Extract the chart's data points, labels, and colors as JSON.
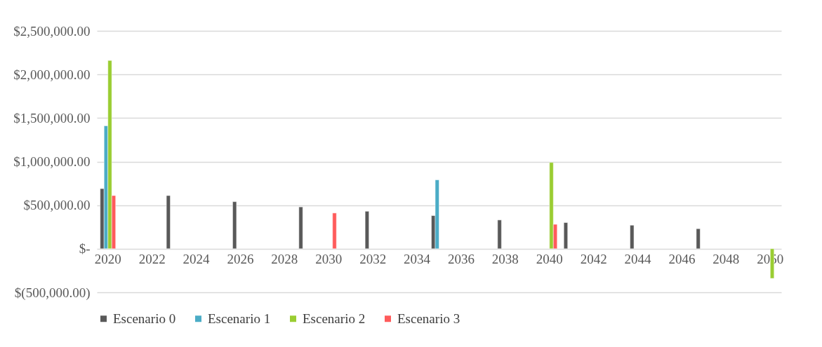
{
  "chart_data": {
    "type": "bar",
    "categories": [
      "2020",
      null,
      "2022",
      null,
      "2024",
      null,
      "2026",
      null,
      "2028",
      null,
      "2030",
      null,
      "2032",
      null,
      "2034",
      null,
      "2036",
      null,
      "2038",
      null,
      "2040",
      null,
      "2042",
      null,
      "2044",
      null,
      "2046",
      null,
      "2048",
      null,
      "2050"
    ],
    "series": [
      {
        "name": "Escenario 0",
        "color": "#595959",
        "values": [
          690000,
          null,
          null,
          610000,
          null,
          null,
          540000,
          null,
          null,
          480000,
          null,
          null,
          430000,
          null,
          null,
          380000,
          null,
          null,
          330000,
          null,
          null,
          300000,
          null,
          null,
          270000,
          null,
          null,
          230000,
          null,
          null,
          null
        ]
      },
      {
        "name": "Escenario 1",
        "color": "#4bacc6",
        "values": [
          1410000,
          null,
          null,
          null,
          null,
          null,
          null,
          null,
          null,
          null,
          null,
          null,
          null,
          null,
          null,
          790000,
          null,
          null,
          null,
          null,
          null,
          null,
          null,
          null,
          null,
          null,
          null,
          null,
          null,
          null,
          null
        ]
      },
      {
        "name": "Escenario 2",
        "color": "#9acd32",
        "values": [
          2160000,
          null,
          null,
          null,
          null,
          null,
          null,
          null,
          null,
          null,
          null,
          null,
          null,
          null,
          null,
          null,
          null,
          null,
          null,
          null,
          990000,
          null,
          null,
          null,
          null,
          null,
          null,
          null,
          null,
          null,
          -340000
        ]
      },
      {
        "name": "Escenario 3",
        "color": "#ff5b5b",
        "values": [
          610000,
          null,
          null,
          null,
          null,
          null,
          null,
          null,
          null,
          null,
          410000,
          null,
          null,
          null,
          null,
          null,
          null,
          null,
          null,
          null,
          280000,
          null,
          null,
          null,
          null,
          null,
          null,
          null,
          null,
          null,
          null
        ]
      }
    ],
    "ylim": [
      -500000,
      2500000
    ],
    "yticks": [
      {
        "value": -500000,
        "label": "$(500,000.00)"
      },
      {
        "value": 0,
        "label": "$-"
      },
      {
        "value": 500000,
        "label": "$500,000.00"
      },
      {
        "value": 1000000,
        "label": "$1,000,000.00"
      },
      {
        "value": 1500000,
        "label": "$1,500,000.00"
      },
      {
        "value": 2000000,
        "label": "$2,000,000.00"
      },
      {
        "value": 2500000,
        "label": "$2,500,000.00"
      }
    ],
    "grid": "y",
    "legend": "bottom"
  }
}
